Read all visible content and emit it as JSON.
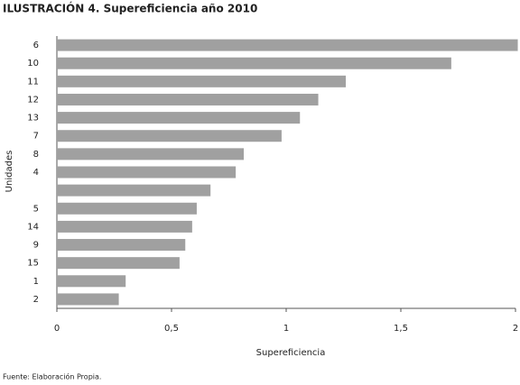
{
  "chart_data": {
    "type": "bar",
    "orientation": "horizontal",
    "title": "ILUSTRACIÓN 4. Supereficiencia año 2010",
    "xlabel": "Supereficiencia",
    "ylabel": "Unidades",
    "source": "Fuente: Elaboración Propia.",
    "categories": [
      "6",
      "10",
      "11",
      "12",
      "13",
      "7",
      "8",
      "4",
      null,
      "5",
      "14",
      "9",
      "15",
      "1",
      "2"
    ],
    "values": [
      2.01,
      1.72,
      1.26,
      1.14,
      1.06,
      0.98,
      0.815,
      0.78,
      0.67,
      0.61,
      0.59,
      0.56,
      0.535,
      0.3,
      0.27
    ],
    "color": "#a0a0a0",
    "xlim": [
      0,
      2
    ],
    "xticks": [
      0,
      {
        "value": 0.5,
        "label": "0,5"
      },
      1,
      {
        "value": 1.5,
        "label": "1,5"
      },
      2
    ],
    "grid": false
  }
}
